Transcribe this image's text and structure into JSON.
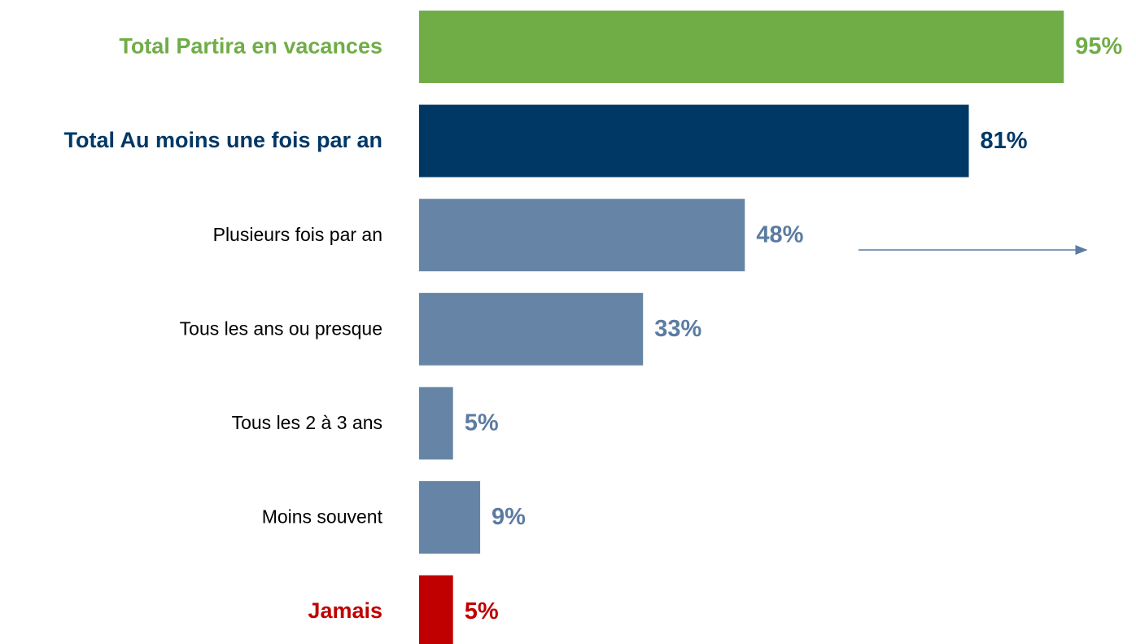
{
  "chart_data": {
    "type": "hbar",
    "categories": [
      "Total Partira en vacances",
      "Total Au moins une fois par an",
      "Plusieurs fois par an",
      "Tous les ans ou presque",
      "Tous les 2 à 3 ans",
      "Moins souvent",
      "Jamais"
    ],
    "values": [
      95,
      81,
      48,
      33,
      5,
      9,
      5
    ],
    "value_labels": [
      "95%",
      "81%",
      "48%",
      "33%",
      "5%",
      "9%",
      "5%"
    ],
    "colors": [
      "#70ad47",
      "#003865",
      "#6685a6",
      "#6685a6",
      "#6685a6",
      "#6685a6",
      "#c00000"
    ],
    "label_colors": [
      "#70ad47",
      "#003865",
      "#000000",
      "#000000",
      "#000000",
      "#000000",
      "#c00000"
    ],
    "value_label_colors": [
      "#70ad47",
      "#003865",
      "#5b7ba1",
      "#5b7ba1",
      "#5b7ba1",
      "#5b7ba1",
      "#c00000"
    ],
    "xlim": [
      0,
      100
    ]
  }
}
